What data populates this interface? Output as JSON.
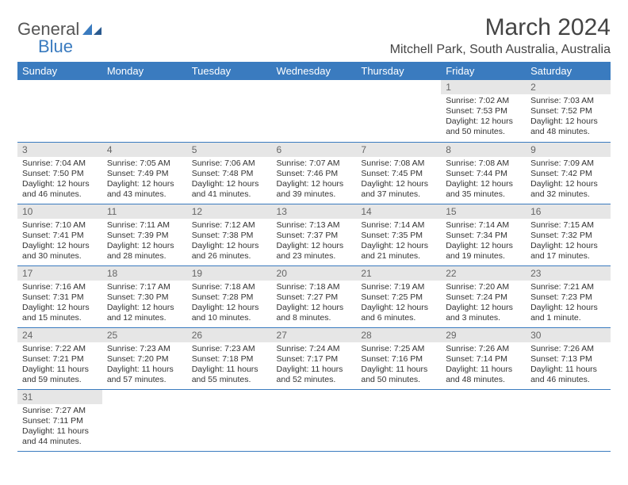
{
  "logo": {
    "part1": "General",
    "part2": "Blue"
  },
  "title": "March 2024",
  "location": "Mitchell Park, South Australia, Australia",
  "colors": {
    "header_bg": "#3a7bbf",
    "header_text": "#ffffff",
    "daynum_bg": "#e6e6e6",
    "daynum_text": "#666666",
    "border": "#3a7bbf",
    "body_text": "#333333",
    "title_text": "#444444"
  },
  "fonts": {
    "title_size_pt": 22,
    "location_size_pt": 12,
    "header_size_pt": 10,
    "cell_size_pt": 8
  },
  "weekdays": [
    "Sunday",
    "Monday",
    "Tuesday",
    "Wednesday",
    "Thursday",
    "Friday",
    "Saturday"
  ],
  "weeks": [
    [
      null,
      null,
      null,
      null,
      null,
      {
        "n": "1",
        "sr": "Sunrise: 7:02 AM",
        "ss": "Sunset: 7:53 PM",
        "dl": "Daylight: 12 hours and 50 minutes."
      },
      {
        "n": "2",
        "sr": "Sunrise: 7:03 AM",
        "ss": "Sunset: 7:52 PM",
        "dl": "Daylight: 12 hours and 48 minutes."
      }
    ],
    [
      {
        "n": "3",
        "sr": "Sunrise: 7:04 AM",
        "ss": "Sunset: 7:50 PM",
        "dl": "Daylight: 12 hours and 46 minutes."
      },
      {
        "n": "4",
        "sr": "Sunrise: 7:05 AM",
        "ss": "Sunset: 7:49 PM",
        "dl": "Daylight: 12 hours and 43 minutes."
      },
      {
        "n": "5",
        "sr": "Sunrise: 7:06 AM",
        "ss": "Sunset: 7:48 PM",
        "dl": "Daylight: 12 hours and 41 minutes."
      },
      {
        "n": "6",
        "sr": "Sunrise: 7:07 AM",
        "ss": "Sunset: 7:46 PM",
        "dl": "Daylight: 12 hours and 39 minutes."
      },
      {
        "n": "7",
        "sr": "Sunrise: 7:08 AM",
        "ss": "Sunset: 7:45 PM",
        "dl": "Daylight: 12 hours and 37 minutes."
      },
      {
        "n": "8",
        "sr": "Sunrise: 7:08 AM",
        "ss": "Sunset: 7:44 PM",
        "dl": "Daylight: 12 hours and 35 minutes."
      },
      {
        "n": "9",
        "sr": "Sunrise: 7:09 AM",
        "ss": "Sunset: 7:42 PM",
        "dl": "Daylight: 12 hours and 32 minutes."
      }
    ],
    [
      {
        "n": "10",
        "sr": "Sunrise: 7:10 AM",
        "ss": "Sunset: 7:41 PM",
        "dl": "Daylight: 12 hours and 30 minutes."
      },
      {
        "n": "11",
        "sr": "Sunrise: 7:11 AM",
        "ss": "Sunset: 7:39 PM",
        "dl": "Daylight: 12 hours and 28 minutes."
      },
      {
        "n": "12",
        "sr": "Sunrise: 7:12 AM",
        "ss": "Sunset: 7:38 PM",
        "dl": "Daylight: 12 hours and 26 minutes."
      },
      {
        "n": "13",
        "sr": "Sunrise: 7:13 AM",
        "ss": "Sunset: 7:37 PM",
        "dl": "Daylight: 12 hours and 23 minutes."
      },
      {
        "n": "14",
        "sr": "Sunrise: 7:14 AM",
        "ss": "Sunset: 7:35 PM",
        "dl": "Daylight: 12 hours and 21 minutes."
      },
      {
        "n": "15",
        "sr": "Sunrise: 7:14 AM",
        "ss": "Sunset: 7:34 PM",
        "dl": "Daylight: 12 hours and 19 minutes."
      },
      {
        "n": "16",
        "sr": "Sunrise: 7:15 AM",
        "ss": "Sunset: 7:32 PM",
        "dl": "Daylight: 12 hours and 17 minutes."
      }
    ],
    [
      {
        "n": "17",
        "sr": "Sunrise: 7:16 AM",
        "ss": "Sunset: 7:31 PM",
        "dl": "Daylight: 12 hours and 15 minutes."
      },
      {
        "n": "18",
        "sr": "Sunrise: 7:17 AM",
        "ss": "Sunset: 7:30 PM",
        "dl": "Daylight: 12 hours and 12 minutes."
      },
      {
        "n": "19",
        "sr": "Sunrise: 7:18 AM",
        "ss": "Sunset: 7:28 PM",
        "dl": "Daylight: 12 hours and 10 minutes."
      },
      {
        "n": "20",
        "sr": "Sunrise: 7:18 AM",
        "ss": "Sunset: 7:27 PM",
        "dl": "Daylight: 12 hours and 8 minutes."
      },
      {
        "n": "21",
        "sr": "Sunrise: 7:19 AM",
        "ss": "Sunset: 7:25 PM",
        "dl": "Daylight: 12 hours and 6 minutes."
      },
      {
        "n": "22",
        "sr": "Sunrise: 7:20 AM",
        "ss": "Sunset: 7:24 PM",
        "dl": "Daylight: 12 hours and 3 minutes."
      },
      {
        "n": "23",
        "sr": "Sunrise: 7:21 AM",
        "ss": "Sunset: 7:23 PM",
        "dl": "Daylight: 12 hours and 1 minute."
      }
    ],
    [
      {
        "n": "24",
        "sr": "Sunrise: 7:22 AM",
        "ss": "Sunset: 7:21 PM",
        "dl": "Daylight: 11 hours and 59 minutes."
      },
      {
        "n": "25",
        "sr": "Sunrise: 7:23 AM",
        "ss": "Sunset: 7:20 PM",
        "dl": "Daylight: 11 hours and 57 minutes."
      },
      {
        "n": "26",
        "sr": "Sunrise: 7:23 AM",
        "ss": "Sunset: 7:18 PM",
        "dl": "Daylight: 11 hours and 55 minutes."
      },
      {
        "n": "27",
        "sr": "Sunrise: 7:24 AM",
        "ss": "Sunset: 7:17 PM",
        "dl": "Daylight: 11 hours and 52 minutes."
      },
      {
        "n": "28",
        "sr": "Sunrise: 7:25 AM",
        "ss": "Sunset: 7:16 PM",
        "dl": "Daylight: 11 hours and 50 minutes."
      },
      {
        "n": "29",
        "sr": "Sunrise: 7:26 AM",
        "ss": "Sunset: 7:14 PM",
        "dl": "Daylight: 11 hours and 48 minutes."
      },
      {
        "n": "30",
        "sr": "Sunrise: 7:26 AM",
        "ss": "Sunset: 7:13 PM",
        "dl": "Daylight: 11 hours and 46 minutes."
      }
    ],
    [
      {
        "n": "31",
        "sr": "Sunrise: 7:27 AM",
        "ss": "Sunset: 7:11 PM",
        "dl": "Daylight: 11 hours and 44 minutes."
      },
      null,
      null,
      null,
      null,
      null,
      null
    ]
  ]
}
